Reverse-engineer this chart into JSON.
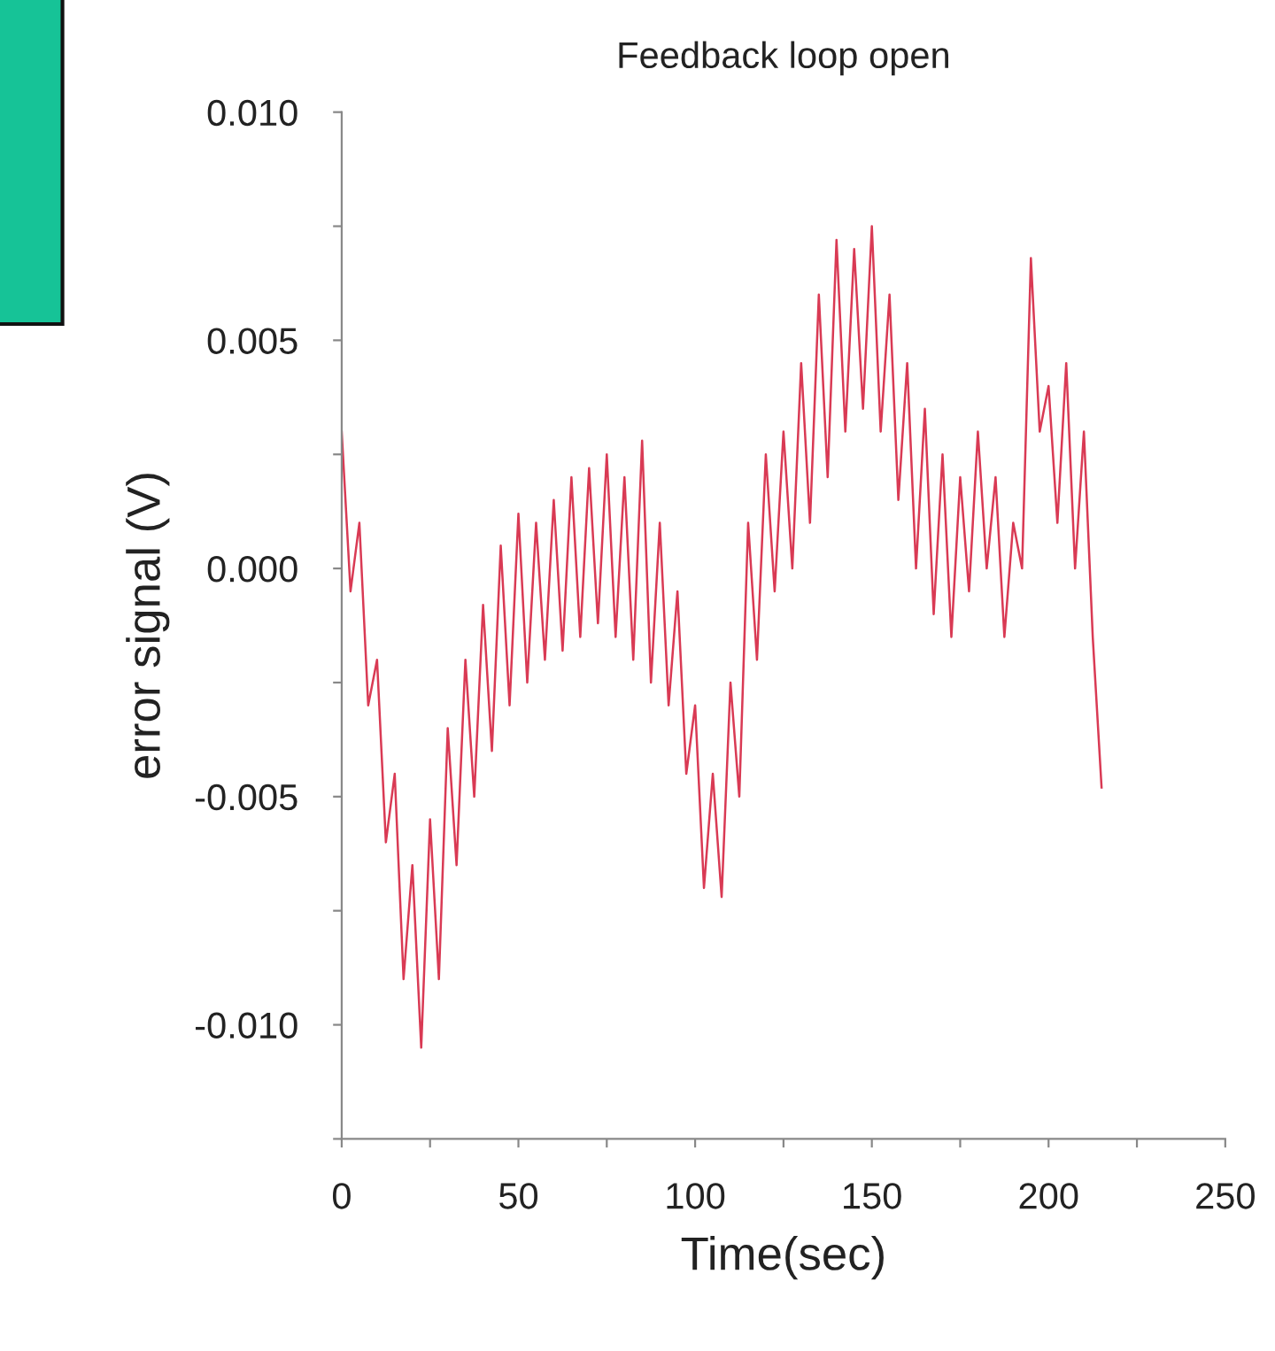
{
  "chart_data": {
    "type": "line",
    "title": "Feedback loop open",
    "xlabel": "Time(sec)",
    "ylabel": "error signal (V)",
    "xlim": [
      0,
      250
    ],
    "ylim": [
      -0.0125,
      0.01
    ],
    "xticks": [
      0,
      {
        "value": 25,
        "label": null
      },
      50,
      {
        "value": 75,
        "label": null
      },
      100,
      {
        "value": 125,
        "label": null
      },
      150,
      {
        "value": 175,
        "label": null
      },
      200,
      {
        "value": 225,
        "label": null
      },
      250
    ],
    "yticks": [
      {
        "value": -0.0125,
        "label": null
      },
      {
        "value": -0.01,
        "label": "-0.010"
      },
      {
        "value": -0.0075,
        "label": null
      },
      {
        "value": -0.005,
        "label": "-0.005"
      },
      {
        "value": -0.0025,
        "label": null
      },
      {
        "value": 0.0,
        "label": "0.000"
      },
      {
        "value": 0.0025,
        "label": null
      },
      {
        "value": 0.005,
        "label": "0.005"
      },
      {
        "value": 0.0075,
        "label": null
      },
      {
        "value": 0.01,
        "label": "0.010"
      }
    ],
    "grid": false,
    "marker": "none",
    "line_style": "solid",
    "series": [
      {
        "color": "#d93a54",
        "x": [
          0,
          2.5,
          5,
          7.5,
          10,
          12.5,
          15,
          17.5,
          20,
          22.5,
          25,
          27.5,
          30,
          32.5,
          35,
          37.5,
          40,
          42.5,
          45,
          47.5,
          50,
          52.5,
          55,
          57.5,
          60,
          62.5,
          65,
          67.5,
          70,
          72.5,
          75,
          77.5,
          80,
          82.5,
          85,
          87.5,
          90,
          92.5,
          95,
          97.5,
          100,
          102.5,
          105,
          107.5,
          110,
          112.5,
          115,
          117.5,
          120,
          122.5,
          125,
          127.5,
          130,
          132.5,
          135,
          137.5,
          140,
          142.5,
          145,
          147.5,
          150,
          152.5,
          155,
          157.5,
          160,
          162.5,
          165,
          167.5,
          170,
          172.5,
          175,
          177.5,
          180,
          182.5,
          185,
          187.5,
          190,
          192.5,
          195,
          197.5,
          200,
          202.5,
          205,
          207.5,
          210,
          212.5,
          215
        ],
        "values": [
          0.003,
          -0.0005,
          0.001,
          -0.003,
          -0.002,
          -0.006,
          -0.0045,
          -0.009,
          -0.0065,
          -0.0105,
          -0.0055,
          -0.009,
          -0.0035,
          -0.0065,
          -0.002,
          -0.005,
          -0.0008,
          -0.004,
          0.0005,
          -0.003,
          0.0012,
          -0.0025,
          0.001,
          -0.002,
          0.0015,
          -0.0018,
          0.002,
          -0.0015,
          0.0022,
          -0.0012,
          0.0025,
          -0.0015,
          0.002,
          -0.002,
          0.0028,
          -0.0025,
          0.001,
          -0.003,
          -0.0005,
          -0.0045,
          -0.003,
          -0.007,
          -0.0045,
          -0.0072,
          -0.0025,
          -0.005,
          0.001,
          -0.002,
          0.0025,
          -0.0005,
          0.003,
          0.0,
          0.0045,
          0.001,
          0.006,
          0.002,
          0.0072,
          0.003,
          0.007,
          0.0035,
          0.0075,
          0.003,
          0.006,
          0.0015,
          0.0045,
          0.0,
          0.0035,
          -0.001,
          0.0025,
          -0.0015,
          0.002,
          -0.0005,
          0.003,
          0.0,
          0.002,
          -0.0015,
          0.001,
          0.0,
          0.0068,
          0.003,
          0.004,
          0.001,
          0.0045,
          0.0,
          0.003,
          -0.0015,
          -0.0048
        ]
      }
    ]
  }
}
